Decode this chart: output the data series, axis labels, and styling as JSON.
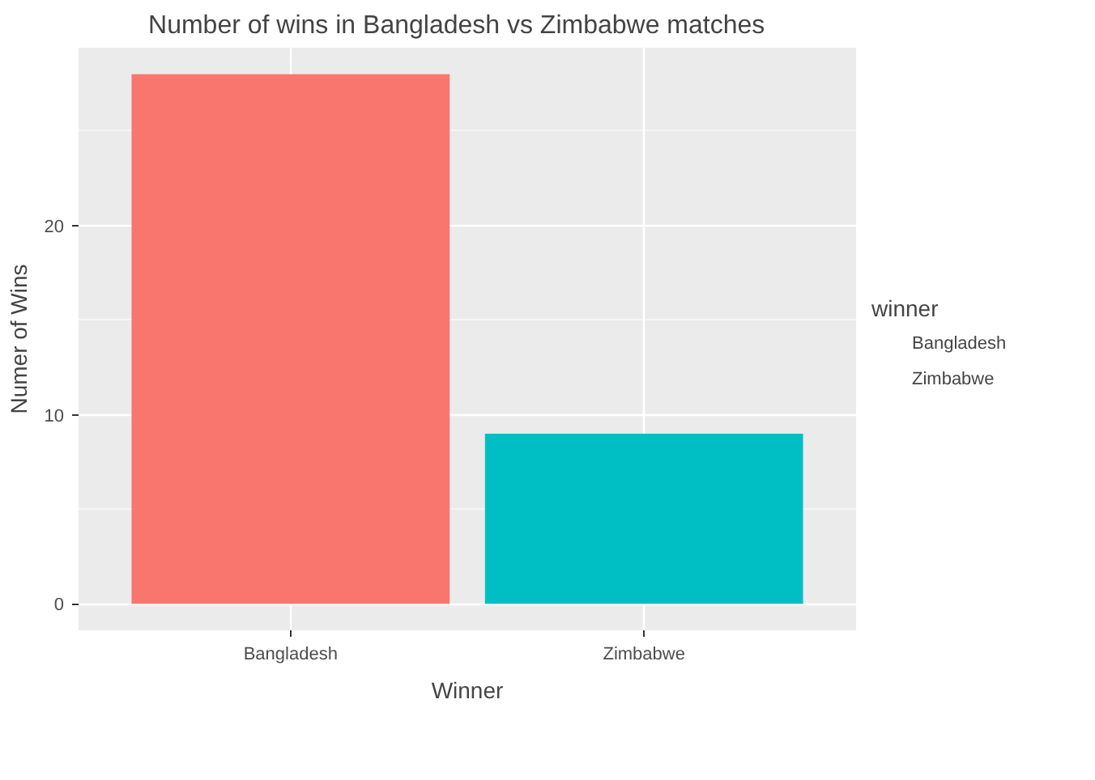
{
  "chart_data": {
    "type": "bar",
    "title": "Number of wins in Bangladesh  vs  Zimbabwe  matches",
    "categories": [
      "Bangladesh",
      "Zimbabwe"
    ],
    "series": [
      {
        "name": "Bangladesh",
        "color": "#f8766d",
        "values": [
          28,
          null
        ]
      },
      {
        "name": "Zimbabwe",
        "color": "#00bfc4",
        "values": [
          null,
          9
        ]
      }
    ],
    "xlabel": "Winner",
    "ylabel": "Numer of Wins",
    "legend_title": "winner",
    "ylim": [
      -1.4,
      29.4
    ],
    "yticks": [
      0,
      10,
      20
    ],
    "grid": true,
    "legend": "right"
  }
}
